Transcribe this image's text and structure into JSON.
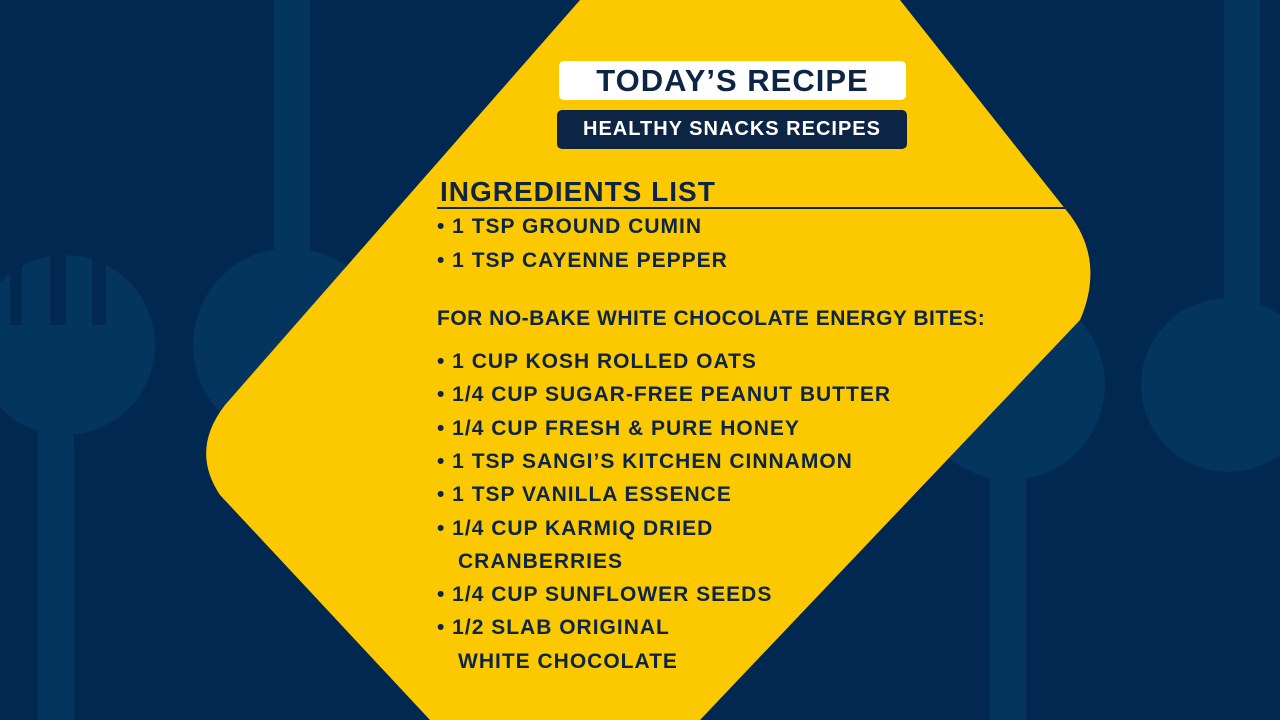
{
  "colors": {
    "background": "#012850",
    "shapes": "#03355f",
    "accent_yellow": "#fcc800",
    "navy_text": "#0d2545"
  },
  "title": "TODAY’S RECIPE",
  "subtitle": "HEALTHY SNACKS RECIPES",
  "ingredients_heading": "INGREDIENTS LIST",
  "bullet": "•",
  "top_items": [
    "1 TSP GROUND CUMIN",
    "1 TSP CAYENNE PEPPER"
  ],
  "section_heading": "FOR NO-BAKE WHITE CHOCOLATE ENERGY BITES:",
  "items": [
    {
      "text": "1 CUP KOSH ROLLED OATS"
    },
    {
      "text": "1/4 CUP SUGAR-FREE PEANUT BUTTER"
    },
    {
      "text": "1/4 CUP FRESH & PURE HONEY"
    },
    {
      "text": "1 TSP SANGI’S KITCHEN CINNAMON"
    },
    {
      "text": "1 TSP VANILLA ESSENCE"
    },
    {
      "text": "1/4 CUP KARMIQ DRIED",
      "cont": "CRANBERRIES"
    },
    {
      "text": "1/4 CUP SUNFLOWER SEEDS"
    },
    {
      "text": "1/2 SLAB ORIGINAL",
      "cont": "WHITE CHOCOLATE"
    }
  ]
}
